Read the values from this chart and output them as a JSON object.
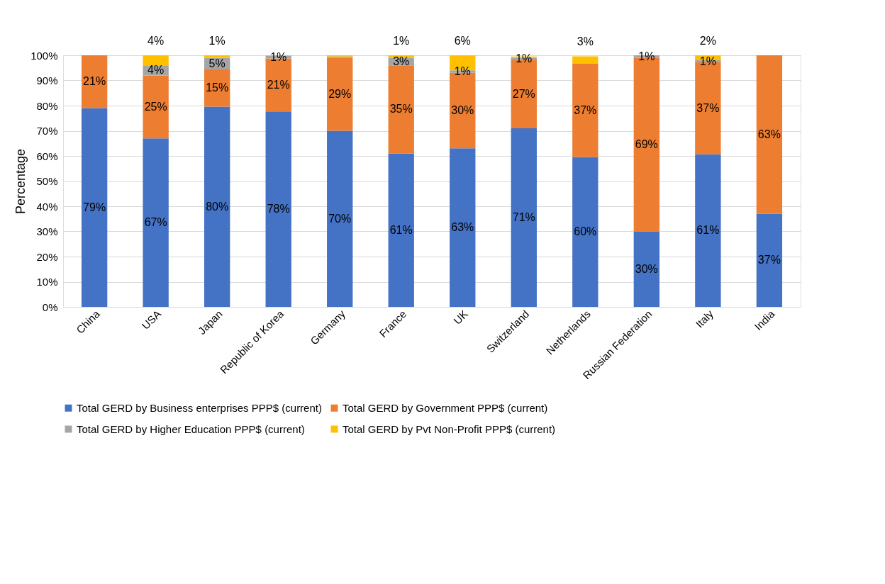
{
  "chart_data": {
    "type": "bar",
    "stacked": true,
    "ylabel": "Percentage",
    "categories": [
      "China",
      "USA",
      "Japan",
      "Republic of Korea",
      "Germany",
      "France",
      "UK",
      "Switzerland",
      "Netherlands",
      "Russian Federation",
      "Italy",
      "India"
    ],
    "series": [
      {
        "name": "Total GERD by Business enterprises PPP$ (current)",
        "color": "#4472c4",
        "values": [
          79,
          67,
          79.6,
          77.7,
          70,
          61,
          63,
          71,
          59.6,
          30,
          60.6,
          37
        ],
        "value_labels": [
          "79%",
          "67%",
          "80%",
          "78%",
          "70%",
          "61%",
          "63%",
          "71%",
          "60%",
          "30%",
          "61%",
          "37%"
        ]
      },
      {
        "name": "Total GERD by Government PPP$ (current)",
        "color": "#ed7d31",
        "values": [
          21,
          25,
          14.8,
          21,
          29,
          35,
          30,
          27,
          37,
          69,
          36.6,
          63
        ],
        "value_labels": [
          "21%",
          "25%",
          "15%",
          "21%",
          "29%",
          "35%",
          "30%",
          "27%",
          "37%",
          "69%",
          "37%",
          "63%"
        ]
      },
      {
        "name": "Total GERD by Higher Education PPP$ (current)",
        "color": "#a5a5a5",
        "values": [
          null,
          4,
          4.6,
          1,
          0.5,
          3,
          1,
          1,
          null,
          1,
          0.8,
          null
        ],
        "value_labels": [
          null,
          "4%",
          "5%",
          "1%",
          null,
          "3%",
          "1%",
          "1%",
          null,
          "1%",
          "1%",
          null
        ]
      },
      {
        "name": "Total GERD by Pvt Non-Profit PPP$ (current)",
        "color": "#ffc000",
        "values": [
          null,
          4,
          1,
          0.3,
          0.5,
          1,
          6,
          0.5,
          3,
          null,
          2,
          null
        ],
        "value_labels": [
          null,
          "4%",
          "1%",
          null,
          null,
          "1%",
          "6%",
          null,
          "3%",
          null,
          "2%",
          null
        ]
      }
    ],
    "ylim": [
      0,
      100
    ],
    "yticks": [
      {
        "value": 0,
        "label": "0%"
      },
      {
        "value": 10,
        "label": "10%"
      },
      {
        "value": 20,
        "label": "20%"
      },
      {
        "value": 30,
        "label": "30%"
      },
      {
        "value": 40,
        "label": "40%"
      },
      {
        "value": 50,
        "label": "50%"
      },
      {
        "value": 60,
        "label": "60%"
      },
      {
        "value": 70,
        "label": "70%"
      },
      {
        "value": 80,
        "label": "80%"
      },
      {
        "value": 90,
        "label": "90%"
      },
      {
        "value": 100,
        "label": "100%"
      }
    ],
    "grid": "y",
    "legend": "bottom"
  }
}
